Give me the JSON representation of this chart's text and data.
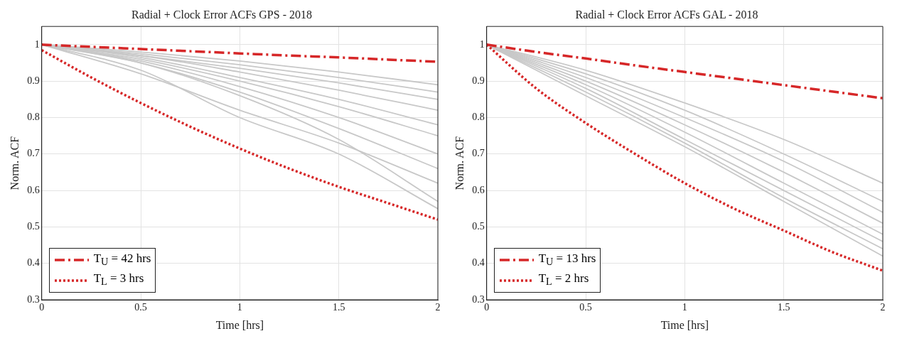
{
  "chart_data": [
    {
      "type": "line",
      "title": "Radial + Clock Error ACFs GPS - 2018",
      "xlabel": "Time [hrs]",
      "ylabel": "Norm. ACF",
      "xlim": [
        0,
        2
      ],
      "xticks": [
        0,
        0.5,
        1,
        1.5,
        2
      ],
      "ylim": [
        0.3,
        1.05
      ],
      "yticks": [
        0.3,
        0.4,
        0.5,
        0.6,
        0.7,
        0.8,
        0.9,
        1
      ],
      "grid": true,
      "legend": "bottom left",
      "marker": "none",
      "x": [
        0,
        0.25,
        0.5,
        0.75,
        1,
        1.25,
        1.5,
        1.75,
        2
      ],
      "series": [
        {
          "color": "#c8c8c8",
          "x": [
            0,
            0.5,
            1,
            1.5,
            2
          ],
          "values": [
            1,
            0.98,
            0.955,
            0.925,
            0.89
          ]
        },
        {
          "color": "#c8c8c8",
          "x": [
            0,
            0.5,
            1,
            1.5,
            2
          ],
          "values": [
            1,
            0.975,
            0.945,
            0.91,
            0.87
          ]
        },
        {
          "color": "#c8c8c8",
          "x": [
            0,
            0.5,
            1,
            1.5,
            2
          ],
          "values": [
            1,
            0.97,
            0.935,
            0.895,
            0.85
          ]
        },
        {
          "color": "#c8c8c8",
          "x": [
            0,
            0.5,
            1,
            1.5,
            2
          ],
          "values": [
            1,
            0.97,
            0.925,
            0.875,
            0.82
          ]
        },
        {
          "color": "#c8c8c8",
          "x": [
            0,
            0.5,
            1,
            1.5,
            2
          ],
          "values": [
            1,
            0.965,
            0.91,
            0.85,
            0.78
          ]
        },
        {
          "color": "#c8c8c8",
          "x": [
            0,
            0.5,
            1,
            1.5,
            2
          ],
          "values": [
            1,
            0.96,
            0.9,
            0.83,
            0.75
          ]
        },
        {
          "color": "#c8c8c8",
          "x": [
            0,
            0.5,
            1,
            1.5,
            2
          ],
          "values": [
            1,
            0.955,
            0.885,
            0.8,
            0.7
          ]
        },
        {
          "color": "#c8c8c8",
          "x": [
            0,
            0.5,
            1,
            1.5,
            2
          ],
          "values": [
            1,
            0.95,
            0.87,
            0.77,
            0.66
          ]
        },
        {
          "color": "#c8c8c8",
          "x": [
            0,
            0.5,
            1,
            1.5,
            2
          ],
          "values": [
            1,
            0.92,
            0.82,
            0.73,
            0.62
          ]
        },
        {
          "color": "#c8c8c8",
          "x": [
            0,
            0.5,
            1,
            1.5,
            2
          ],
          "values": [
            1,
            0.95,
            0.86,
            0.74,
            0.57
          ]
        },
        {
          "color": "#c8c8c8",
          "x": [
            0,
            0.5,
            1,
            1.5,
            2
          ],
          "values": [
            1,
            0.93,
            0.8,
            0.7,
            0.55
          ]
        },
        {
          "name": "T$_{U}$ = 42 hrs",
          "color": "#d62728",
          "line_style": "dashed",
          "values": [
            1,
            0.994,
            0.988,
            0.982,
            0.976,
            0.97,
            0.965,
            0.959,
            0.953
          ]
        },
        {
          "name": "T$_{L}$ = 3 hrs",
          "color": "#d62728",
          "line_style": "dotted",
          "values": [
            0.985,
            0.91,
            0.84,
            0.775,
            0.715,
            0.66,
            0.61,
            0.565,
            0.52
          ]
        }
      ]
    },
    {
      "type": "line",
      "title": "Radial + Clock Error ACFs GAL - 2018",
      "xlabel": "Time [hrs]",
      "ylabel": "Norm. ACF",
      "xlim": [
        0,
        2
      ],
      "xticks": [
        0,
        0.5,
        1,
        1.5,
        2
      ],
      "ylim": [
        0.3,
        1.05
      ],
      "yticks": [
        0.3,
        0.4,
        0.5,
        0.6,
        0.7,
        0.8,
        0.9,
        1
      ],
      "grid": true,
      "legend": "bottom left",
      "marker": "none",
      "x": [
        0,
        0.25,
        0.5,
        0.75,
        1,
        1.25,
        1.5,
        1.75,
        2
      ],
      "series": [
        {
          "color": "#c8c8c8",
          "x": [
            0,
            0.5,
            1,
            1.5,
            2
          ],
          "values": [
            1,
            0.93,
            0.84,
            0.74,
            0.62
          ]
        },
        {
          "color": "#c8c8c8",
          "x": [
            0,
            0.5,
            1,
            1.5,
            2
          ],
          "values": [
            1,
            0.92,
            0.82,
            0.7,
            0.57
          ]
        },
        {
          "color": "#c8c8c8",
          "x": [
            0,
            0.5,
            1,
            1.5,
            2
          ],
          "values": [
            1,
            0.91,
            0.8,
            0.68,
            0.54
          ]
        },
        {
          "color": "#c8c8c8",
          "x": [
            0,
            0.5,
            1,
            1.5,
            2
          ],
          "values": [
            1,
            0.9,
            0.78,
            0.65,
            0.51
          ]
        },
        {
          "color": "#c8c8c8",
          "x": [
            0,
            0.5,
            1,
            1.5,
            2
          ],
          "values": [
            1,
            0.89,
            0.76,
            0.62,
            0.48
          ]
        },
        {
          "color": "#c8c8c8",
          "x": [
            0,
            0.5,
            1,
            1.5,
            2
          ],
          "values": [
            1,
            0.88,
            0.74,
            0.6,
            0.46
          ]
        },
        {
          "color": "#c8c8c8",
          "x": [
            0,
            0.5,
            1,
            1.5,
            2
          ],
          "values": [
            1,
            0.87,
            0.73,
            0.58,
            0.44
          ]
        },
        {
          "color": "#c8c8c8",
          "x": [
            0,
            0.5,
            1,
            1.5,
            2
          ],
          "values": [
            1,
            0.86,
            0.72,
            0.57,
            0.42
          ]
        },
        {
          "name": "T$_{U}$ = 13 hrs",
          "color": "#d62728",
          "line_style": "dashed",
          "values": [
            1,
            0.98,
            0.962,
            0.943,
            0.925,
            0.907,
            0.889,
            0.871,
            0.853
          ]
        },
        {
          "name": "T$_{L}$ = 2 hrs",
          "color": "#d62728",
          "line_style": "dotted",
          "values": [
            1,
            0.88,
            0.785,
            0.7,
            0.62,
            0.55,
            0.49,
            0.43,
            0.38
          ]
        }
      ]
    }
  ]
}
